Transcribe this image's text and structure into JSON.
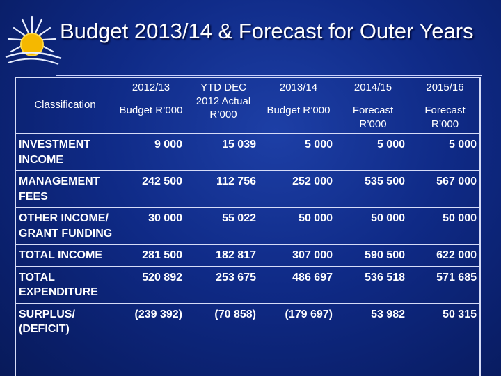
{
  "title": "Budget 2013/14 & Forecast for Outer Years",
  "table": {
    "header": {
      "classification": "Classification",
      "columns": [
        {
          "top": "2012/13",
          "bottom": "Budget R’000"
        },
        {
          "top": "YTD DEC 2012 Actual R’000",
          "bottom": ""
        },
        {
          "top": "2013/14",
          "bottom": "Budget R’000"
        },
        {
          "top": "2014/15",
          "bottom": "Forecast R’000"
        },
        {
          "top": "2015/16",
          "bottom": "Forecast R’000"
        }
      ]
    },
    "rows": [
      {
        "label": "INVESTMENT INCOME",
        "values": [
          "9 000",
          "15 039",
          "5 000",
          "5 000",
          "5 000"
        ]
      },
      {
        "label": "MANAGEMENT FEES",
        "values": [
          "242 500",
          "112 756",
          "252 000",
          "535 500",
          "567 000"
        ]
      },
      {
        "label": "OTHER INCOME/ GRANT FUNDING",
        "values": [
          "30 000",
          "55 022",
          "50 000",
          "50 000",
          "50 000"
        ]
      },
      {
        "label": "TOTAL INCOME",
        "values": [
          "281 500",
          "182 817",
          "307 000",
          "590 500",
          "622 000"
        ]
      },
      {
        "label": "TOTAL EXPENDITURE",
        "values": [
          "520 892",
          "253 675",
          "486 697",
          "536 518",
          "571 685"
        ]
      },
      {
        "label": "SURPLUS/ (DEFICIT)",
        "values": [
          "(239 392)",
          "(70 858)",
          "(179 697)",
          "53 982",
          "50 315"
        ]
      }
    ]
  },
  "colors": {
    "background": "#0f2a86",
    "text": "#ffffff",
    "sun": "#f5b800",
    "grid": "#d6dcf8"
  }
}
